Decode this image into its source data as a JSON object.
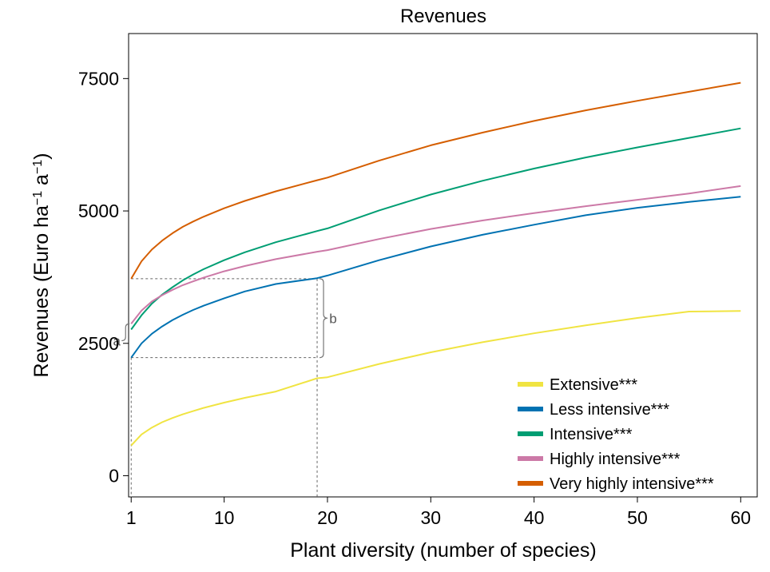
{
  "chart_data": {
    "type": "line",
    "title": "Revenues",
    "xlabel": "Plant diversity (number of species)",
    "ylabel_parts": [
      "Revenues (Euro ha",
      "−1",
      " a",
      "−1",
      ")"
    ],
    "xlim": [
      0.75,
      61.6
    ],
    "ylim": [
      -400,
      8350
    ],
    "x_ticks": [
      1,
      10,
      20,
      30,
      40,
      50,
      60
    ],
    "y_ticks": [
      0,
      2500,
      5000,
      7500
    ],
    "x": [
      1,
      2,
      3,
      4,
      5,
      6,
      7,
      8,
      10,
      12,
      15,
      19,
      20,
      25,
      30,
      35,
      40,
      45,
      50,
      55,
      60
    ],
    "series": [
      {
        "name": "Extensive***",
        "color": "#f0e442",
        "values": [
          570,
          780,
          910,
          1010,
          1090,
          1160,
          1220,
          1280,
          1380,
          1470,
          1590,
          1840,
          1860,
          2110,
          2330,
          2520,
          2690,
          2840,
          2980,
          3100,
          3110
        ]
      },
      {
        "name": "Less intensive***",
        "color": "#0072b2",
        "values": [
          2230,
          2500,
          2680,
          2820,
          2940,
          3040,
          3130,
          3210,
          3350,
          3480,
          3620,
          3730,
          3780,
          4070,
          4330,
          4550,
          4740,
          4920,
          5060,
          5170,
          5270
        ]
      },
      {
        "name": "Intensive***",
        "color": "#009e73",
        "values": [
          2760,
          3030,
          3250,
          3420,
          3560,
          3690,
          3800,
          3900,
          4070,
          4220,
          4410,
          4620,
          4670,
          5010,
          5310,
          5570,
          5800,
          6010,
          6200,
          6380,
          6560
        ]
      },
      {
        "name": "Highly intensive***",
        "color": "#cc79a7",
        "values": [
          2870,
          3120,
          3290,
          3410,
          3510,
          3600,
          3670,
          3740,
          3860,
          3960,
          4090,
          4230,
          4260,
          4470,
          4660,
          4820,
          4960,
          5090,
          5210,
          5330,
          5470
        ]
      },
      {
        "name": "Very highly intensive***",
        "color": "#d55e00",
        "values": [
          3720,
          4050,
          4270,
          4440,
          4580,
          4700,
          4800,
          4890,
          5050,
          5190,
          5370,
          5580,
          5630,
          5950,
          6240,
          6480,
          6700,
          6900,
          7080,
          7250,
          7420
        ]
      }
    ],
    "annotations": {
      "a_label": "a",
      "b_label": "b",
      "ref_x_low": 1,
      "ref_x_high": 19,
      "ref_y_low": 2230,
      "ref_y_high": 3720
    },
    "legend_position": "bottom-right",
    "grid": false
  }
}
